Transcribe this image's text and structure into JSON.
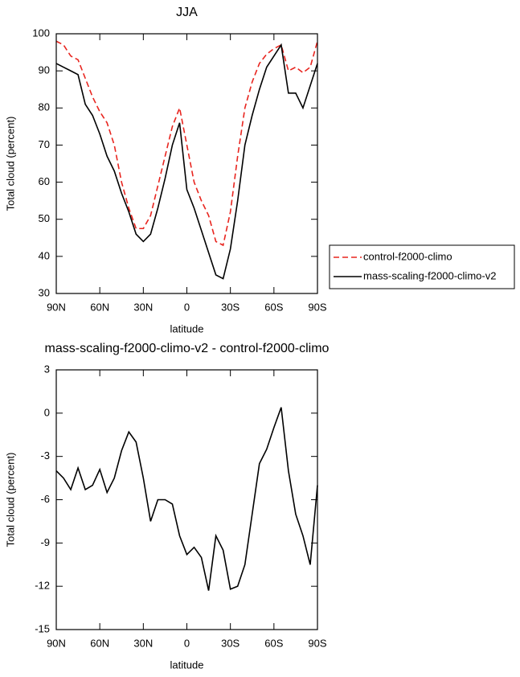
{
  "chart_data": [
    {
      "type": "line",
      "title": "JJA",
      "x_label": "latitude",
      "y_label": "Total cloud (percent)",
      "x": [
        90,
        85,
        80,
        75,
        70,
        65,
        60,
        55,
        50,
        45,
        40,
        35,
        30,
        25,
        20,
        15,
        10,
        5,
        0,
        -5,
        -10,
        -15,
        -20,
        -25,
        -30,
        -35,
        -40,
        -45,
        -50,
        -55,
        -60,
        -65,
        -70,
        -75,
        -80,
        -85,
        -90
      ],
      "series": [
        {
          "name": "control-f2000-climo",
          "color": "#e8251f",
          "line_style": "dashed",
          "values": [
            98,
            97,
            94,
            93,
            88,
            83,
            79,
            76,
            70,
            60,
            53,
            47.5,
            47.5,
            51,
            59,
            67,
            75,
            80,
            70,
            60,
            55,
            51,
            44,
            43,
            52,
            67,
            80,
            87,
            92,
            94.5,
            96,
            97,
            90,
            91,
            89.5,
            91,
            98
          ]
        },
        {
          "name": "mass-scaling-f2000-climo-v2",
          "color": "#000000",
          "line_style": "solid",
          "values": [
            92,
            91,
            90,
            89,
            81,
            78,
            73,
            67,
            63,
            57,
            52,
            46,
            44,
            46,
            53,
            61,
            70,
            76,
            58,
            53,
            47,
            41,
            35,
            34,
            42,
            55,
            70,
            78,
            85,
            91,
            94,
            97,
            84,
            84,
            80,
            86,
            92
          ]
        }
      ],
      "xlim": [
        90,
        -90
      ],
      "xticks": [
        {
          "value": 90,
          "label": "90N"
        },
        {
          "value": 60,
          "label": "60N"
        },
        {
          "value": 30,
          "label": "30N"
        },
        0,
        {
          "value": -30,
          "label": "30S"
        },
        {
          "value": -60,
          "label": "60S"
        },
        {
          "value": -90,
          "label": "90S"
        }
      ],
      "ylim": [
        30,
        100
      ],
      "yticks": [
        30,
        40,
        50,
        60,
        70,
        80,
        90,
        100
      ],
      "legend": "right"
    },
    {
      "type": "line",
      "title": "mass-scaling-f2000-climo-v2 - control-f2000-climo",
      "x_label": "latitude",
      "y_label": "Total cloud (percent)",
      "x": [
        90,
        85,
        80,
        75,
        70,
        65,
        60,
        55,
        50,
        45,
        40,
        35,
        30,
        25,
        20,
        15,
        10,
        5,
        0,
        -5,
        -10,
        -15,
        -20,
        -25,
        -30,
        -35,
        -40,
        -45,
        -50,
        -55,
        -60,
        -65,
        -70,
        -75,
        -80,
        -85,
        -90
      ],
      "series": [
        {
          "color": "#000000",
          "line_style": "solid",
          "values": [
            -4,
            -4.5,
            -5.3,
            -3.8,
            -5.3,
            -5,
            -3.9,
            -5.5,
            -4.5,
            -2.6,
            -1.3,
            -2,
            -4.5,
            -7.5,
            -6,
            -6,
            -6.3,
            -8.5,
            -9.8,
            -9.3,
            -10,
            -12.3,
            -8.5,
            -9.5,
            -12.2,
            -12,
            -10.5,
            -7,
            -3.5,
            -2.5,
            -1,
            0.4,
            -4,
            -7,
            -8.5,
            -10.5,
            -5
          ]
        }
      ],
      "xlim": [
        90,
        -90
      ],
      "xticks": [
        {
          "value": 90,
          "label": "90N"
        },
        {
          "value": 60,
          "label": "60N"
        },
        {
          "value": 30,
          "label": "30N"
        },
        0,
        {
          "value": -30,
          "label": "30S"
        },
        {
          "value": -60,
          "label": "60S"
        },
        {
          "value": -90,
          "label": "90S"
        }
      ],
      "ylim": [
        -15,
        3
      ],
      "yticks": [
        -15,
        -12,
        -9,
        -6,
        -3,
        0,
        3
      ]
    }
  ]
}
